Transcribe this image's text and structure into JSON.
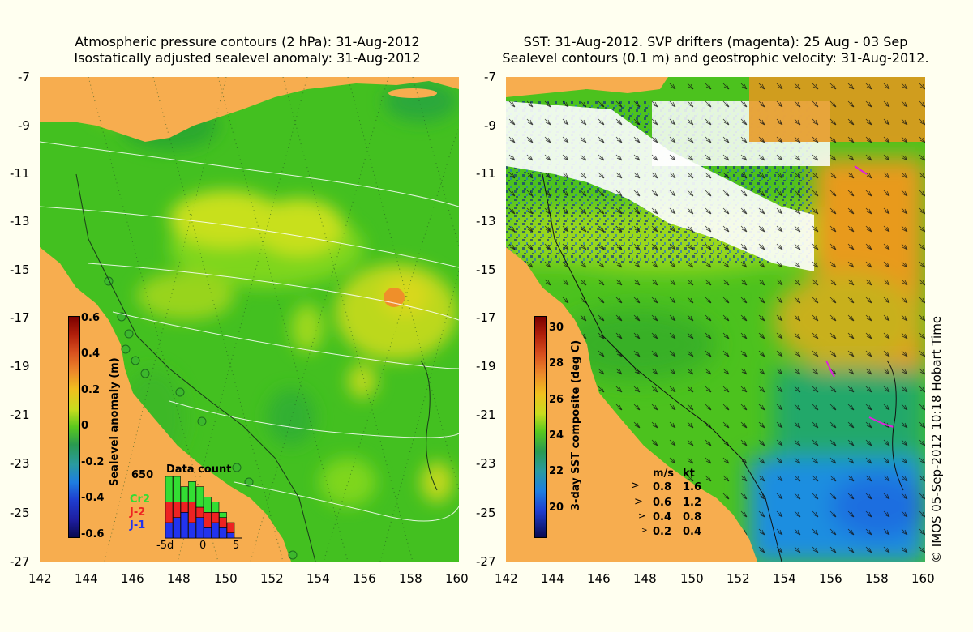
{
  "left_title": {
    "line1": "Atmospheric pressure contours (2 hPa): 31-Aug-2012",
    "line2": "Isostatically adjusted sealevel anomaly: 31-Aug-2012"
  },
  "right_title": {
    "line1": "SST: 31-Aug-2012. SVP drifters (magenta): 25 Aug - 03 Sep",
    "line2": "Sealevel contours (0.1 m) and geostrophic velocity: 31-Aug-2012."
  },
  "axes": {
    "lat_ticks": [
      "-7",
      "-9",
      "-11",
      "-13",
      "-15",
      "-17",
      "-19",
      "-21",
      "-23",
      "-25",
      "-27"
    ],
    "lon_ticks": [
      "142",
      "144",
      "146",
      "148",
      "150",
      "152",
      "154",
      "156",
      "158",
      "160"
    ]
  },
  "left_colorbar": {
    "label": "Sealevel anomaly (m)",
    "ticks": [
      "0.6",
      "0.4",
      "0.2",
      "0",
      "-0.2",
      "-0.4",
      "-0.6"
    ]
  },
  "right_colorbar": {
    "label": "3-day SST composite (deg C)",
    "ticks": [
      "30",
      "28",
      "26",
      "24",
      "22",
      "20"
    ]
  },
  "data_count": {
    "title": "Data count",
    "max_label": "650",
    "x_labels": [
      "-5d",
      "0",
      "5"
    ],
    "missions": [
      {
        "name": "Cr2",
        "color": "#33dd33"
      },
      {
        "name": "J-2",
        "color": "#ee2222"
      },
      {
        "name": "J-1",
        "color": "#2233ee"
      }
    ],
    "bars": [
      {
        "b": 3,
        "r": 4,
        "g": 5
      },
      {
        "b": 4,
        "r": 3,
        "g": 5
      },
      {
        "b": 5,
        "r": 2,
        "g": 3
      },
      {
        "b": 3,
        "r": 4,
        "g": 4
      },
      {
        "b": 4,
        "r": 2,
        "g": 4
      },
      {
        "b": 2,
        "r": 3,
        "g": 3
      },
      {
        "b": 3,
        "r": 2,
        "g": 2
      },
      {
        "b": 2,
        "r": 2,
        "g": 1
      },
      {
        "b": 1,
        "r": 2,
        "g": 0
      }
    ]
  },
  "velocity_legend": {
    "header_ms": "m/s",
    "header_kt": "kt",
    "rows": [
      {
        "ms": "0.8",
        "kt": "1.6"
      },
      {
        "ms": "0.6",
        "kt": "1.2"
      },
      {
        "ms": "0.4",
        "kt": "0.8"
      },
      {
        "ms": "0.2",
        "kt": "0.4"
      }
    ]
  },
  "watermark": "© IMOS 05-Sep-2012 10:18 Hobart Time",
  "colors": {
    "land": "#f7ad4f",
    "background": "#fffff0",
    "sea_green": "#4fc81e",
    "drifter": "#dd22dd"
  }
}
